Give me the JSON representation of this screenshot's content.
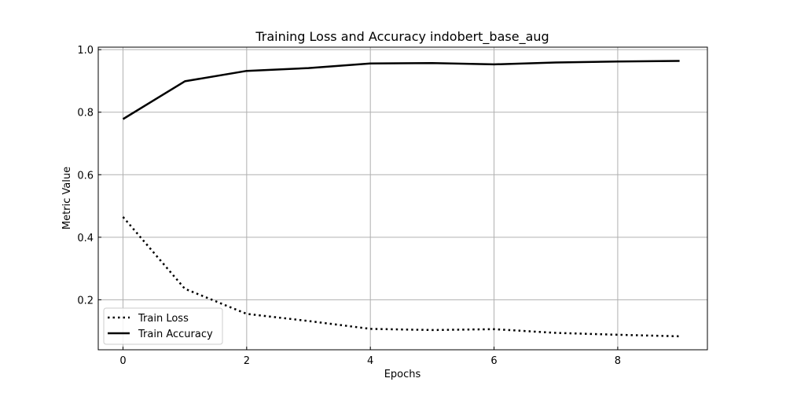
{
  "chart_data": {
    "type": "line",
    "title": "Training Loss and Accuracy indobert_base_aug",
    "xlabel": "Epochs",
    "ylabel": "Metric Value",
    "x": [
      0,
      1,
      2,
      3,
      4,
      5,
      6,
      7,
      8,
      9
    ],
    "xlim": [
      -0.4,
      9.45
    ],
    "ylim": [
      0.04,
      1.008
    ],
    "xticks": [
      0,
      2,
      4,
      6,
      8
    ],
    "yticks": [
      0.2,
      0.4,
      0.6,
      0.8,
      1.0
    ],
    "xtick_labels": [
      "0",
      "2",
      "4",
      "6",
      "8"
    ],
    "ytick_labels": [
      "0.2",
      "0.4",
      "0.6",
      "0.8",
      "1.0"
    ],
    "grid": true,
    "legend_position": "lower-left",
    "series": [
      {
        "name": "Train Loss",
        "style": "dotted",
        "color": "#000000",
        "values": [
          0.465,
          0.235,
          0.155,
          0.132,
          0.107,
          0.103,
          0.106,
          0.094,
          0.088,
          0.083
        ]
      },
      {
        "name": "Train Accuracy",
        "style": "solid",
        "color": "#000000",
        "values": [
          0.778,
          0.899,
          0.932,
          0.941,
          0.956,
          0.957,
          0.953,
          0.959,
          0.962,
          0.964
        ]
      }
    ]
  }
}
